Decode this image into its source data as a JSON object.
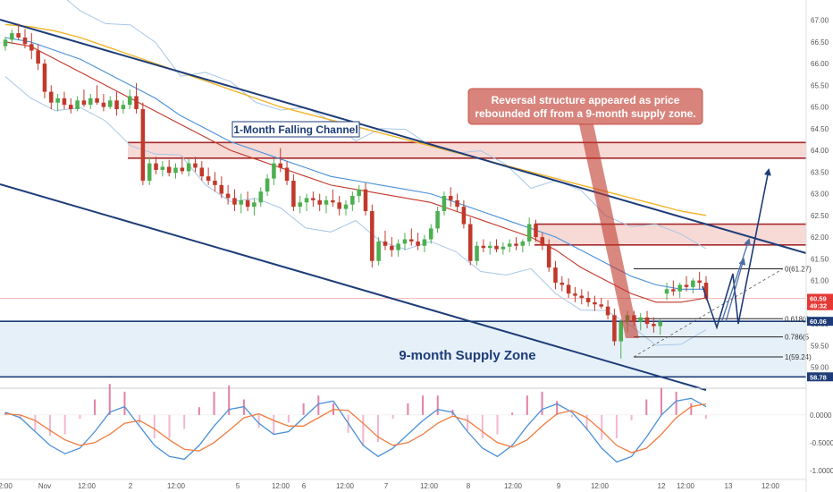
{
  "chart_data": {
    "type": "candlestick",
    "price_axis": {
      "range": [
        58.6,
        67.3
      ],
      "ticks": [
        "67.00",
        "66.50",
        "66.00",
        "65.50",
        "65.00",
        "64.50",
        "64.00",
        "63.50",
        "63.00",
        "62.50",
        "62.00",
        "61.50",
        "61.00",
        "60.50",
        "60.00",
        "59.50",
        "59.00"
      ],
      "tags": [
        {
          "label": "60.59",
          "value": 60.59,
          "color": "#e53935"
        },
        {
          "label": "49:32",
          "value": 60.42,
          "color": "#e53935"
        },
        {
          "label": "60.06",
          "value": 60.06,
          "color": "#1d3c78"
        },
        {
          "label": "58.78",
          "value": 58.78,
          "color": "#1d3c78"
        }
      ]
    },
    "time_axis": {
      "labels": [
        "2:00",
        "Nov",
        "12:00",
        "2",
        "12:00",
        "5",
        "12:00",
        "6",
        "12:00",
        "7",
        "12:00",
        "8",
        "12:00",
        "9",
        "12:00",
        "12",
        "12:00",
        "13",
        "12:00"
      ]
    },
    "candles": [
      [
        66.4,
        66.62,
        66.3,
        66.55
      ],
      [
        66.55,
        66.78,
        66.45,
        66.7
      ],
      [
        66.7,
        66.92,
        66.55,
        66.6
      ],
      [
        66.6,
        66.8,
        66.35,
        66.45
      ],
      [
        66.45,
        66.7,
        66.1,
        66.3
      ],
      [
        66.3,
        66.45,
        65.85,
        66.0
      ],
      [
        66.0,
        66.1,
        65.2,
        65.35
      ],
      [
        65.35,
        65.5,
        64.95,
        65.1
      ],
      [
        65.1,
        65.3,
        64.9,
        65.2
      ],
      [
        65.2,
        65.35,
        64.95,
        65.05
      ],
      [
        65.05,
        65.2,
        64.85,
        64.95
      ],
      [
        64.95,
        65.25,
        64.9,
        65.15
      ],
      [
        65.15,
        65.4,
        65.0,
        65.05
      ],
      [
        65.05,
        65.3,
        64.95,
        65.2
      ],
      [
        65.2,
        65.5,
        65.05,
        65.1
      ],
      [
        65.1,
        65.3,
        64.9,
        65.0
      ],
      [
        65.0,
        65.25,
        64.95,
        65.15
      ],
      [
        65.15,
        65.35,
        64.8,
        64.95
      ],
      [
        64.95,
        65.15,
        64.85,
        65.05
      ],
      [
        65.05,
        65.4,
        64.95,
        65.25
      ],
      [
        65.25,
        65.55,
        64.85,
        64.95
      ],
      [
        64.95,
        65.1,
        63.2,
        63.3
      ],
      [
        63.3,
        63.85,
        63.2,
        63.7
      ],
      [
        63.7,
        63.85,
        63.45,
        63.55
      ],
      [
        63.55,
        63.75,
        63.4,
        63.62
      ],
      [
        63.62,
        63.78,
        63.4,
        63.48
      ],
      [
        63.48,
        63.7,
        63.35,
        63.6
      ],
      [
        63.6,
        63.85,
        63.45,
        63.52
      ],
      [
        63.52,
        63.8,
        63.4,
        63.7
      ],
      [
        63.7,
        63.85,
        63.5,
        63.6
      ],
      [
        63.6,
        63.75,
        63.3,
        63.4
      ],
      [
        63.4,
        63.6,
        63.2,
        63.3
      ],
      [
        63.3,
        63.5,
        63.05,
        63.2
      ],
      [
        63.2,
        63.4,
        62.9,
        63.0
      ],
      [
        63.0,
        63.2,
        62.75,
        62.9
      ],
      [
        62.9,
        63.1,
        62.6,
        62.75
      ],
      [
        62.75,
        63.0,
        62.55,
        62.85
      ],
      [
        62.85,
        63.05,
        62.6,
        62.7
      ],
      [
        62.7,
        62.9,
        62.5,
        62.8
      ],
      [
        62.8,
        63.15,
        62.7,
        63.05
      ],
      [
        63.05,
        63.45,
        62.95,
        63.35
      ],
      [
        63.35,
        63.8,
        63.2,
        63.7
      ],
      [
        63.7,
        64.05,
        63.5,
        63.6
      ],
      [
        63.6,
        63.75,
        63.2,
        63.3
      ],
      [
        63.3,
        63.45,
        62.6,
        62.7
      ],
      [
        62.7,
        62.95,
        62.55,
        62.8
      ],
      [
        62.8,
        63.0,
        62.6,
        62.9
      ],
      [
        62.9,
        63.05,
        62.7,
        62.85
      ],
      [
        62.85,
        63.0,
        62.6,
        62.75
      ],
      [
        62.75,
        62.95,
        62.55,
        62.85
      ],
      [
        62.85,
        63.1,
        62.7,
        62.8
      ],
      [
        62.8,
        62.95,
        62.5,
        62.65
      ],
      [
        62.65,
        62.85,
        62.5,
        62.75
      ],
      [
        62.75,
        63.05,
        62.6,
        62.95
      ],
      [
        62.95,
        63.2,
        62.8,
        63.1
      ],
      [
        63.1,
        63.25,
        62.5,
        62.6
      ],
      [
        62.6,
        62.75,
        61.3,
        61.45
      ],
      [
        61.45,
        62.0,
        61.35,
        61.9
      ],
      [
        61.9,
        62.15,
        61.7,
        61.8
      ],
      [
        61.8,
        62.0,
        61.55,
        61.7
      ],
      [
        61.7,
        61.95,
        61.55,
        61.85
      ],
      [
        61.85,
        62.1,
        61.7,
        61.95
      ],
      [
        61.95,
        62.2,
        61.8,
        61.9
      ],
      [
        61.9,
        62.1,
        61.7,
        61.8
      ],
      [
        61.8,
        62.05,
        61.65,
        61.95
      ],
      [
        61.95,
        62.3,
        61.85,
        62.2
      ],
      [
        62.2,
        62.7,
        62.1,
        62.6
      ],
      [
        62.6,
        63.05,
        62.5,
        62.95
      ],
      [
        62.95,
        63.15,
        62.7,
        62.85
      ],
      [
        62.85,
        63.0,
        62.6,
        62.7
      ],
      [
        62.7,
        62.85,
        62.2,
        62.3
      ],
      [
        62.3,
        62.45,
        61.35,
        61.45
      ],
      [
        61.45,
        61.9,
        61.35,
        61.8
      ],
      [
        61.8,
        61.95,
        61.65,
        61.75
      ],
      [
        61.75,
        61.9,
        61.6,
        61.8
      ],
      [
        61.8,
        61.95,
        61.65,
        61.72
      ],
      [
        61.72,
        61.88,
        61.6,
        61.78
      ],
      [
        61.78,
        61.95,
        61.65,
        61.85
      ],
      [
        61.85,
        62.0,
        61.7,
        61.8
      ],
      [
        61.8,
        61.95,
        61.65,
        61.9
      ],
      [
        61.9,
        62.45,
        61.8,
        62.3
      ],
      [
        62.3,
        62.4,
        61.9,
        62.0
      ],
      [
        62.0,
        62.1,
        61.7,
        61.8
      ],
      [
        61.8,
        61.95,
        61.2,
        61.3
      ],
      [
        61.3,
        61.45,
        60.8,
        60.95
      ],
      [
        60.95,
        61.1,
        60.75,
        60.9
      ],
      [
        60.9,
        61.05,
        60.6,
        60.7
      ],
      [
        60.7,
        60.85,
        60.5,
        60.65
      ],
      [
        60.65,
        60.8,
        60.45,
        60.6
      ],
      [
        60.6,
        60.75,
        60.4,
        60.5
      ],
      [
        60.5,
        60.65,
        60.3,
        60.45
      ],
      [
        60.45,
        60.6,
        60.35,
        60.4
      ],
      [
        60.4,
        60.55,
        60.1,
        60.2
      ],
      [
        60.2,
        60.35,
        59.5,
        59.6
      ],
      [
        59.6,
        60.1,
        59.2,
        60.05
      ],
      [
        60.05,
        60.3,
        59.8,
        60.2
      ],
      [
        60.2,
        60.3,
        59.95,
        60.05
      ],
      [
        60.05,
        60.25,
        59.85,
        60.15
      ],
      [
        60.15,
        60.3,
        59.9,
        60.0
      ],
      [
        60.0,
        60.15,
        59.8,
        59.95
      ],
      [
        59.95,
        60.1,
        59.75,
        60.05
      ],
      [
        60.7,
        60.95,
        60.55,
        60.8
      ],
      [
        60.8,
        61.0,
        60.65,
        60.75
      ],
      [
        60.75,
        60.95,
        60.6,
        60.9
      ],
      [
        60.9,
        61.1,
        60.75,
        60.85
      ],
      [
        60.85,
        61.05,
        60.7,
        61.0
      ],
      [
        61.0,
        61.2,
        60.8,
        60.95
      ],
      [
        60.95,
        61.1,
        60.55,
        60.59
      ]
    ],
    "moving_averages": [
      {
        "role": "fast",
        "color": "#c0392b",
        "values": [
          66.5,
          66.4,
          66.1,
          65.8,
          65.5,
          65.2,
          64.9,
          64.6,
          64.3,
          64.0,
          63.8,
          63.6,
          63.4,
          63.2,
          63.1,
          63.0,
          62.9,
          62.8,
          62.6,
          62.4,
          62.2,
          62.0,
          61.7,
          61.3,
          61.0,
          60.7,
          60.5,
          60.5,
          60.6
        ]
      },
      {
        "role": "medium",
        "color": "#4a90d9",
        "values": [
          66.6,
          66.5,
          66.3,
          66.1,
          65.8,
          65.5,
          65.2,
          64.8,
          64.5,
          64.2,
          64.0,
          63.8,
          63.6,
          63.4,
          63.3,
          63.2,
          63.1,
          63.0,
          62.8,
          62.6,
          62.4,
          62.2,
          62.0,
          61.7,
          61.4,
          61.1,
          60.9,
          60.8,
          60.8
        ]
      },
      {
        "role": "slow",
        "color": "#f0b429",
        "values": [
          66.9,
          66.85,
          66.75,
          66.6,
          66.4,
          66.2,
          66.0,
          65.8,
          65.6,
          65.4,
          65.2,
          65.0,
          64.85,
          64.7,
          64.55,
          64.4,
          64.25,
          64.1,
          63.95,
          63.8,
          63.65,
          63.5,
          63.35,
          63.2,
          63.05,
          62.9,
          62.75,
          62.6,
          62.5
        ]
      }
    ],
    "fibonacci": [
      {
        "label": "0(61.27)",
        "value": 61.27
      },
      {
        "label": "0.618(6",
        "value": 60.12
      },
      {
        "label": "0.786(5",
        "value": 59.7
      },
      {
        "label": "1(59.24)",
        "value": 59.24
      }
    ],
    "zones": [
      {
        "kind": "resistance",
        "from": 63.82,
        "to": 64.18
      },
      {
        "kind": "resistance",
        "from": 61.82,
        "to": 62.3
      },
      {
        "kind": "supply",
        "from": 58.78,
        "to": 60.06,
        "label": "9-month Supply Zone"
      }
    ],
    "annotations": {
      "channel_label": "1-Month Falling Channel",
      "callout_line1": "Reversal structure appeared as price",
      "callout_line2": "rebounded off from a 9-month supply zone."
    },
    "macd": {
      "range": [
        -1.1,
        0.45
      ],
      "ticks": [
        "0.0000",
        "-0.5000",
        "-1.0000"
      ],
      "macd_line": [
        0.05,
        -0.05,
        -0.3,
        -0.55,
        -0.7,
        -0.6,
        -0.3,
        0.05,
        0.15,
        -0.2,
        -0.55,
        -0.75,
        -0.8,
        -0.55,
        -0.2,
        0.1,
        0.15,
        -0.15,
        -0.35,
        -0.3,
        -0.05,
        0.2,
        0.25,
        -0.15,
        -0.55,
        -0.75,
        -0.6,
        -0.35,
        -0.1,
        0.1,
        0.05,
        -0.3,
        -0.6,
        -0.75,
        -0.55,
        -0.2,
        0.1,
        0.2,
        0.05,
        -0.25,
        -0.6,
        -0.85,
        -0.75,
        -0.4,
        0.0,
        0.25,
        0.3,
        0.15
      ],
      "signal_line": [
        0.02,
        0.0,
        -0.1,
        -0.28,
        -0.45,
        -0.55,
        -0.5,
        -0.35,
        -0.15,
        -0.1,
        -0.25,
        -0.45,
        -0.62,
        -0.65,
        -0.5,
        -0.28,
        -0.05,
        0.02,
        -0.1,
        -0.2,
        -0.2,
        -0.05,
        0.1,
        0.08,
        -0.15,
        -0.4,
        -0.55,
        -0.5,
        -0.35,
        -0.15,
        -0.02,
        -0.1,
        -0.3,
        -0.5,
        -0.58,
        -0.45,
        -0.2,
        0.02,
        0.08,
        -0.05,
        -0.28,
        -0.55,
        -0.68,
        -0.6,
        -0.35,
        -0.05,
        0.15,
        0.2
      ]
    }
  }
}
